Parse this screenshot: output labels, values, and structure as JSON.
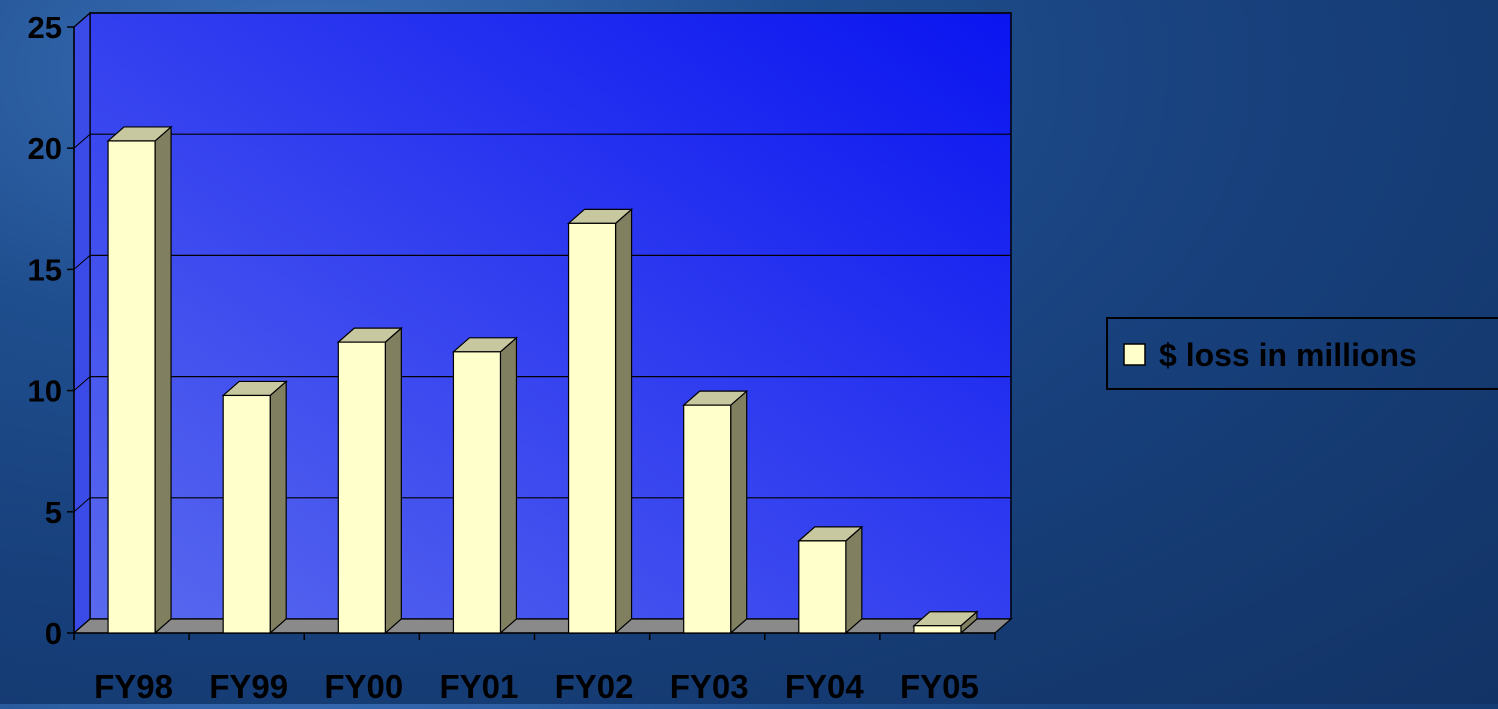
{
  "chart_data": {
    "type": "bar",
    "title": "",
    "xlabel": "",
    "ylabel": "",
    "categories": [
      "FY98",
      "FY99",
      "FY00",
      "FY01",
      "FY02",
      "FY03",
      "FY04",
      "FY05"
    ],
    "series": [
      {
        "name": "$ loss in millions",
        "values": [
          20.3,
          9.8,
          12.0,
          11.6,
          16.9,
          9.4,
          3.8,
          0.3
        ]
      }
    ],
    "ylim": [
      0,
      25
    ],
    "yticks": [
      "0",
      "5",
      "10",
      "15",
      "20",
      "25"
    ],
    "grid": true,
    "legend": "right",
    "colors": {
      "bar_front": "#ffffcc",
      "bar_side": "#808060",
      "bar_top": "#c8c8a0",
      "plot_wall_dark": "#0a14f0",
      "plot_wall_light": "#5a6aee",
      "floor": "#8a8a8a",
      "gridline": "#000000"
    }
  }
}
